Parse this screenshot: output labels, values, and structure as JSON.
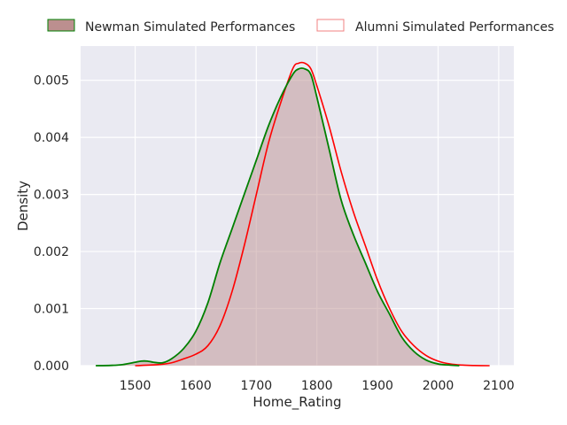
{
  "chart_data": {
    "type": "area",
    "title": "",
    "xlabel": "Home_Rating",
    "ylabel": "Density",
    "xlim": [
      1410,
      2125
    ],
    "ylim": [
      0,
      0.0056
    ],
    "xticks": [
      "1500",
      "1600",
      "1700",
      "1800",
      "1900",
      "2000",
      "2100"
    ],
    "yticks": [
      "0.000",
      "0.001",
      "0.002",
      "0.003",
      "0.004",
      "0.005"
    ],
    "grid": true,
    "background": "#eaeaf2",
    "legend_position": "top",
    "series": [
      {
        "name": "Newman Simulated Performances",
        "color": "#008000",
        "fill": "#bc8f8f",
        "x": [
          1435,
          1460,
          1480,
          1500,
          1510,
          1520,
          1530,
          1545,
          1560,
          1580,
          1600,
          1620,
          1640,
          1660,
          1680,
          1700,
          1720,
          1740,
          1760,
          1770,
          1780,
          1790,
          1800,
          1820,
          1840,
          1860,
          1880,
          1900,
          1920,
          1940,
          1960,
          1980,
          2000,
          2020,
          2035
        ],
        "y": [
          0.0,
          5e-06,
          2e-05,
          6e-05,
          8e-05,
          8e-05,
          6e-05,
          5e-05,
          0.00012,
          0.0003,
          0.0006,
          0.0011,
          0.0018,
          0.0024,
          0.003,
          0.0036,
          0.0042,
          0.0047,
          0.0051,
          0.0052,
          0.0052,
          0.0051,
          0.0047,
          0.0038,
          0.0029,
          0.0023,
          0.0018,
          0.0013,
          0.0009,
          0.0005,
          0.00025,
          0.0001,
          3e-05,
          1e-05,
          0.0
        ]
      },
      {
        "name": "Alumni Simulated Performances",
        "color": "#ff0000",
        "fill": "none",
        "x": [
          1500,
          1540,
          1560,
          1580,
          1600,
          1620,
          1640,
          1660,
          1680,
          1700,
          1720,
          1740,
          1760,
          1770,
          1780,
          1790,
          1800,
          1820,
          1840,
          1860,
          1880,
          1900,
          1920,
          1940,
          1960,
          1980,
          2000,
          2020,
          2040,
          2060,
          2085
        ],
        "y": [
          0.0,
          2e-05,
          5e-05,
          0.00012,
          0.0002,
          0.00035,
          0.0007,
          0.0013,
          0.0021,
          0.003,
          0.0039,
          0.0046,
          0.0052,
          0.0053,
          0.0053,
          0.0052,
          0.0049,
          0.0042,
          0.0034,
          0.0027,
          0.0021,
          0.0015,
          0.001,
          0.0006,
          0.00035,
          0.00018,
          8e-05,
          3e-05,
          1e-05,
          3e-06,
          0.0
        ]
      }
    ]
  }
}
